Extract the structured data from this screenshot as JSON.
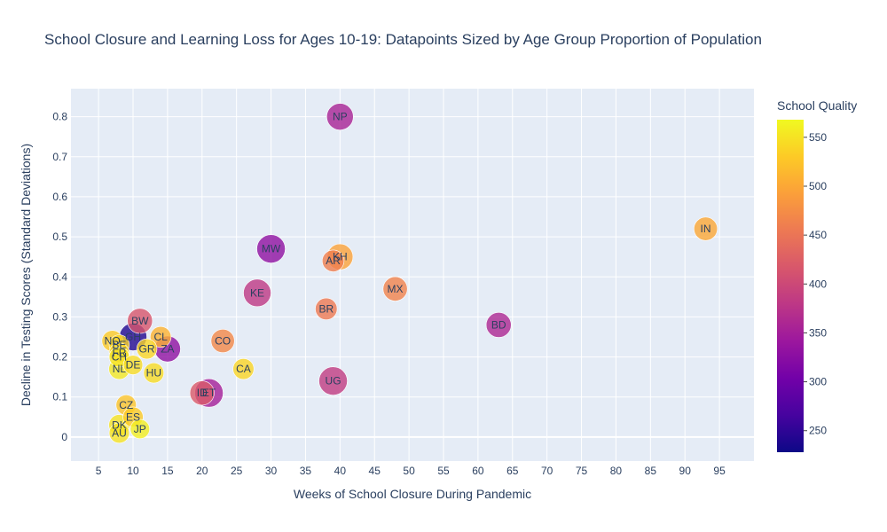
{
  "chart_data": {
    "type": "scatter",
    "title": "School Closure and Learning Loss for Ages 10-19: Datapoints Sized by Age Group Proportion of Population",
    "xlabel": "Weeks of School Closure During Pandemic",
    "ylabel": "Decline in Testing Scores (Standard Deviations)",
    "xlim": [
      1,
      100
    ],
    "ylim": [
      -0.06,
      0.87
    ],
    "xticks": [
      5,
      10,
      15,
      20,
      25,
      30,
      35,
      40,
      45,
      50,
      55,
      60,
      65,
      70,
      75,
      80,
      85,
      90,
      95
    ],
    "yticks": [
      0,
      0.1,
      0.2,
      0.3,
      0.4,
      0.5,
      0.6,
      0.7,
      0.8
    ],
    "grid": true,
    "colorbar": {
      "title": "School Quality",
      "range": [
        228,
        568
      ],
      "ticks": [
        250,
        300,
        350,
        400,
        450,
        500,
        550
      ],
      "colorscale": [
        "#0d0887",
        "#46039f",
        "#7201a8",
        "#9c179e",
        "#bd3786",
        "#d8576b",
        "#ed7953",
        "#fb9f3a",
        "#fdca26",
        "#f0f921"
      ]
    },
    "points": [
      {
        "label": "NP",
        "x": 40,
        "y": 0.8,
        "quality": 355,
        "size": 0.24
      },
      {
        "label": "IN",
        "x": 93,
        "y": 0.52,
        "quality": 500,
        "size": 0.2
      },
      {
        "label": "MW",
        "x": 30,
        "y": 0.47,
        "quality": 330,
        "size": 0.26
      },
      {
        "label": "KH",
        "x": 40,
        "y": 0.45,
        "quality": 495,
        "size": 0.23
      },
      {
        "label": "AR",
        "x": 39,
        "y": 0.44,
        "quality": 460,
        "size": 0.18
      },
      {
        "label": "MX",
        "x": 48,
        "y": 0.37,
        "quality": 465,
        "size": 0.21
      },
      {
        "label": "KE",
        "x": 28,
        "y": 0.36,
        "quality": 380,
        "size": 0.25
      },
      {
        "label": "BR",
        "x": 38,
        "y": 0.32,
        "quality": 455,
        "size": 0.18
      },
      {
        "label": "BW",
        "x": 11,
        "y": 0.29,
        "quality": 415,
        "size": 0.22
      },
      {
        "label": "BD",
        "x": 63,
        "y": 0.28,
        "quality": 360,
        "size": 0.22
      },
      {
        "label": "GH",
        "x": 10,
        "y": 0.25,
        "quality": 240,
        "size": 0.25
      },
      {
        "label": "CL",
        "x": 14,
        "y": 0.25,
        "quality": 510,
        "size": 0.17
      },
      {
        "label": "NO",
        "x": 7,
        "y": 0.24,
        "quality": 530,
        "size": 0.17
      },
      {
        "label": "CO",
        "x": 23,
        "y": 0.24,
        "quality": 470,
        "size": 0.2
      },
      {
        "label": "BE",
        "x": 8,
        "y": 0.23,
        "quality": 540,
        "size": 0.16
      },
      {
        "label": "GR",
        "x": 12,
        "y": 0.22,
        "quality": 540,
        "size": 0.16
      },
      {
        "label": "ZA",
        "x": 15,
        "y": 0.22,
        "quality": 330,
        "size": 0.23
      },
      {
        "label": "FR",
        "x": 8,
        "y": 0.21,
        "quality": 540,
        "size": 0.16
      },
      {
        "label": "CH",
        "x": 8,
        "y": 0.2,
        "quality": 550,
        "size": 0.16
      },
      {
        "label": "DE",
        "x": 10,
        "y": 0.18,
        "quality": 545,
        "size": 0.15
      },
      {
        "label": "NL",
        "x": 8,
        "y": 0.17,
        "quality": 555,
        "size": 0.17
      },
      {
        "label": "CA",
        "x": 26,
        "y": 0.17,
        "quality": 540,
        "size": 0.17
      },
      {
        "label": "HU",
        "x": 13,
        "y": 0.16,
        "quality": 545,
        "size": 0.16
      },
      {
        "label": "UG",
        "x": 39,
        "y": 0.14,
        "quality": 385,
        "size": 0.26
      },
      {
        "label": "ID",
        "x": 20,
        "y": 0.11,
        "quality": 420,
        "size": 0.21
      },
      {
        "label": "ET",
        "x": 21,
        "y": 0.11,
        "quality": 350,
        "size": 0.26
      },
      {
        "label": "CZ",
        "x": 9,
        "y": 0.08,
        "quality": 525,
        "size": 0.16
      },
      {
        "label": "ES",
        "x": 10,
        "y": 0.05,
        "quality": 530,
        "size": 0.16
      },
      {
        "label": "DK",
        "x": 8,
        "y": 0.03,
        "quality": 550,
        "size": 0.17
      },
      {
        "label": "JP",
        "x": 11,
        "y": 0.02,
        "quality": 560,
        "size": 0.15
      },
      {
        "label": "AU",
        "x": 8,
        "y": 0.01,
        "quality": 550,
        "size": 0.16
      }
    ]
  }
}
